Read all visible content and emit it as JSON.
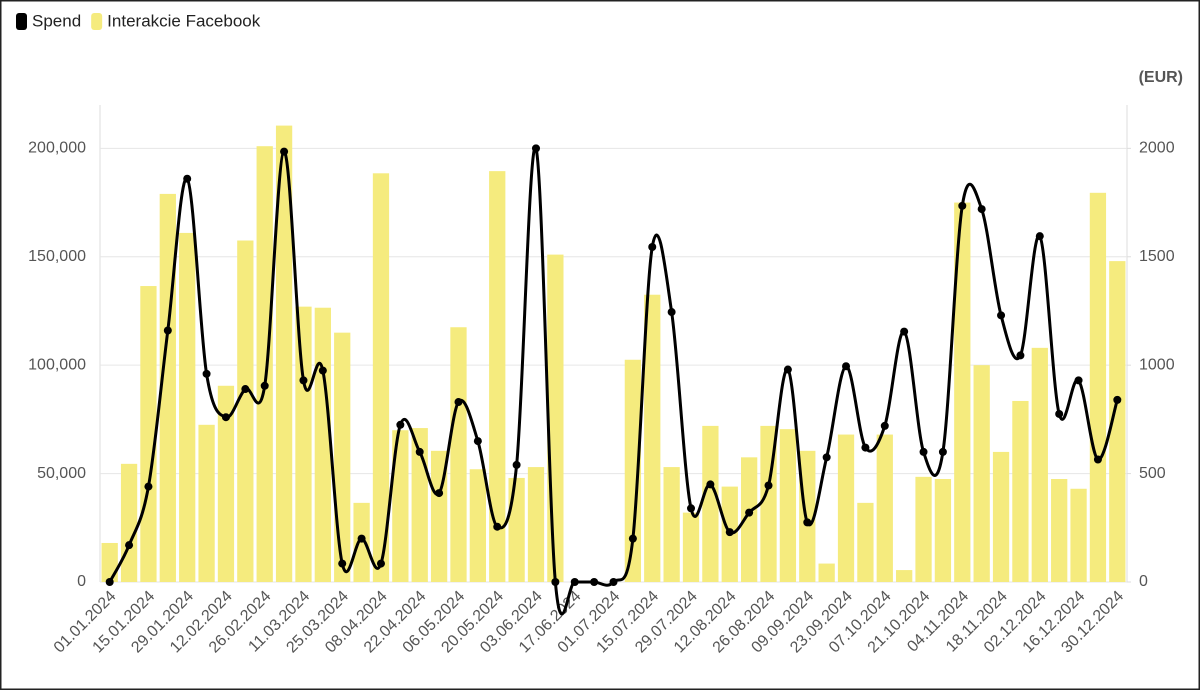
{
  "chart_data": {
    "type": "bar+line",
    "categories": [
      "01.01.2024",
      null,
      "15.01.2024",
      null,
      "29.01.2024",
      null,
      "12.02.2024",
      null,
      "26.02.2024",
      null,
      "11.03.2024",
      null,
      "25.03.2024",
      null,
      "08.04.2024",
      null,
      "22.04.2024",
      null,
      "06.05.2024",
      null,
      "20.05.2024",
      null,
      "03.06.2024",
      null,
      "17.06.2024",
      null,
      "01.07.2024",
      null,
      "15.07.2024",
      null,
      "29.07.2024",
      null,
      "12.08.2024",
      null,
      "26.08.2024",
      null,
      "09.09.2024",
      null,
      "23.09.2024",
      null,
      "07.10.2024",
      null,
      "21.10.2024",
      null,
      "04.11.2024",
      null,
      "18.11.2024",
      null,
      "02.12.2024",
      null,
      "16.12.2024",
      null,
      "30.12.2024"
    ],
    "series": [
      {
        "name": "Spend",
        "type": "line",
        "axis": "y2",
        "color": "#000000",
        "values": [
          0,
          170,
          440,
          1160,
          1860,
          960,
          760,
          890,
          905,
          1985,
          930,
          975,
          85,
          200,
          85,
          725,
          600,
          410,
          830,
          650,
          255,
          540,
          2000,
          0,
          0,
          0,
          0,
          200,
          1545,
          1245,
          340,
          450,
          230,
          320,
          445,
          980,
          275,
          575,
          995,
          620,
          720,
          1155,
          600,
          600,
          1735,
          1720,
          1230,
          1045,
          1595,
          775,
          930,
          565,
          840
        ]
      },
      {
        "name": "Interakcie Facebook",
        "type": "bar",
        "color": "#f5eb7e",
        "values": [
          18000,
          54500,
          136500,
          179000,
          161000,
          72500,
          90500,
          157500,
          201000,
          210500,
          127000,
          126500,
          115000,
          36500,
          188500,
          70000,
          71000,
          60500,
          117500,
          52000,
          189500,
          48000,
          53000,
          151000,
          0,
          0,
          0,
          102500,
          132500,
          53000,
          32000,
          72000,
          44000,
          57500,
          72000,
          70500,
          60500,
          8500,
          68000,
          36500,
          68000,
          5500,
          48500,
          47500,
          175000,
          100000,
          60000,
          83500,
          108000,
          47500,
          43000,
          179500,
          148000
        ]
      }
    ],
    "ylim": [
      0,
      220000
    ],
    "yticks": [
      0,
      {
        "value": 50000,
        "label": "50,000"
      },
      {
        "value": 100000,
        "label": "100,000"
      },
      {
        "value": 150000,
        "label": "150,000"
      },
      {
        "value": 200000,
        "label": "200,000"
      }
    ],
    "y2label": "(EUR)",
    "y2lim": [
      0,
      2200
    ],
    "y2ticks": [
      0,
      500,
      1000,
      1500,
      2000
    ],
    "grid": true,
    "legend": "top-left"
  }
}
